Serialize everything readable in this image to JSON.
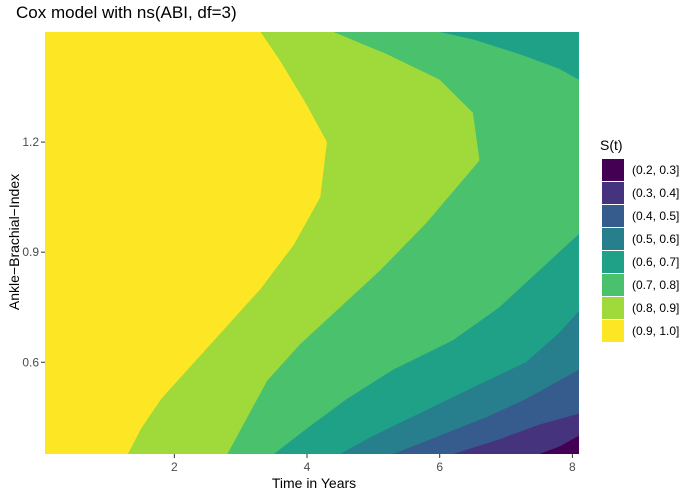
{
  "title": "Cox model with ns(ABI, df=3)",
  "chart_data": {
    "type": "heatmap",
    "title": "Cox model with ns(ABI, df=3)",
    "xlabel": "Time in Years",
    "ylabel": "Ankle−Brachial−Index",
    "xlim": [
      0.05,
      8.1
    ],
    "ylim": [
      0.35,
      1.5
    ],
    "x_ticks": [
      2,
      4,
      6,
      8
    ],
    "y_ticks": [
      0.6,
      0.9,
      1.2
    ],
    "x_tick_labels": [
      "2",
      "4",
      "6",
      "8"
    ],
    "y_tick_labels": [
      "0.6",
      "0.9",
      "1.2"
    ],
    "legend": {
      "title": "S(t)",
      "position": "right",
      "entries": [
        {
          "label": "(0.2, 0.3]",
          "color": "#440154"
        },
        {
          "label": "(0.3, 0.4]",
          "color": "#46337E"
        },
        {
          "label": "(0.4, 0.5]",
          "color": "#365C8D"
        },
        {
          "label": "(0.5, 0.6]",
          "color": "#277F8E"
        },
        {
          "label": "(0.6, 0.7]",
          "color": "#1FA187"
        },
        {
          "label": "(0.7, 0.8]",
          "color": "#4AC16D"
        },
        {
          "label": "(0.8, 0.9]",
          "color": "#9FDA3A"
        },
        {
          "label": "(0.9, 1.0]",
          "color": "#FDE725"
        }
      ]
    },
    "contour_boundaries": [
      {
        "level": 0.9,
        "points": [
          [
            1.3,
            0.35
          ],
          [
            1.5,
            0.42
          ],
          [
            1.8,
            0.5
          ],
          [
            2.3,
            0.6
          ],
          [
            2.8,
            0.7
          ],
          [
            3.3,
            0.8
          ],
          [
            3.8,
            0.92
          ],
          [
            4.2,
            1.05
          ],
          [
            4.3,
            1.2
          ],
          [
            4.0,
            1.3
          ],
          [
            3.6,
            1.42
          ],
          [
            3.3,
            1.5
          ]
        ]
      },
      {
        "level": 0.8,
        "points": [
          [
            2.8,
            0.35
          ],
          [
            3.1,
            0.45
          ],
          [
            3.4,
            0.55
          ],
          [
            3.9,
            0.65
          ],
          [
            4.5,
            0.75
          ],
          [
            5.1,
            0.85
          ],
          [
            5.8,
            0.98
          ],
          [
            6.6,
            1.15
          ],
          [
            6.5,
            1.28
          ],
          [
            6.0,
            1.37
          ],
          [
            5.2,
            1.44
          ],
          [
            4.4,
            1.5
          ]
        ]
      },
      {
        "level": 0.7,
        "points": [
          [
            3.5,
            0.35
          ],
          [
            4.0,
            0.42
          ],
          [
            4.6,
            0.5
          ],
          [
            5.3,
            0.58
          ],
          [
            6.2,
            0.66
          ],
          [
            6.9,
            0.75
          ],
          [
            7.5,
            0.85
          ],
          [
            8.1,
            0.95
          ],
          [
            8.1,
            1.2
          ],
          [
            8.1,
            1.37
          ],
          [
            7.8,
            1.4
          ],
          [
            7.2,
            1.44
          ],
          [
            6.5,
            1.48
          ],
          [
            6.0,
            1.5
          ]
        ]
      },
      {
        "level": 0.6,
        "points": [
          [
            4.5,
            0.35
          ],
          [
            5.0,
            0.4
          ],
          [
            5.8,
            0.47
          ],
          [
            6.6,
            0.54
          ],
          [
            7.3,
            0.6
          ],
          [
            7.8,
            0.68
          ],
          [
            8.1,
            0.74
          ],
          [
            8.1,
            1.5
          ],
          [
            8.1,
            1.5
          ],
          [
            7.0,
            1.5
          ]
        ]
      },
      {
        "level": 0.5,
        "points": [
          [
            5.3,
            0.35
          ],
          [
            6.0,
            0.4
          ],
          [
            6.7,
            0.45
          ],
          [
            7.3,
            0.5
          ],
          [
            7.8,
            0.55
          ],
          [
            8.1,
            0.58
          ],
          [
            8.1,
            0.35
          ]
        ]
      },
      {
        "level": 0.4,
        "points": [
          [
            6.2,
            0.35
          ],
          [
            6.9,
            0.39
          ],
          [
            7.5,
            0.43
          ],
          [
            8.1,
            0.46
          ],
          [
            8.1,
            0.35
          ]
        ]
      },
      {
        "level": 0.3,
        "points": [
          [
            7.5,
            0.35
          ],
          [
            7.8,
            0.37
          ],
          [
            8.1,
            0.4
          ],
          [
            8.1,
            0.35
          ]
        ]
      }
    ]
  }
}
